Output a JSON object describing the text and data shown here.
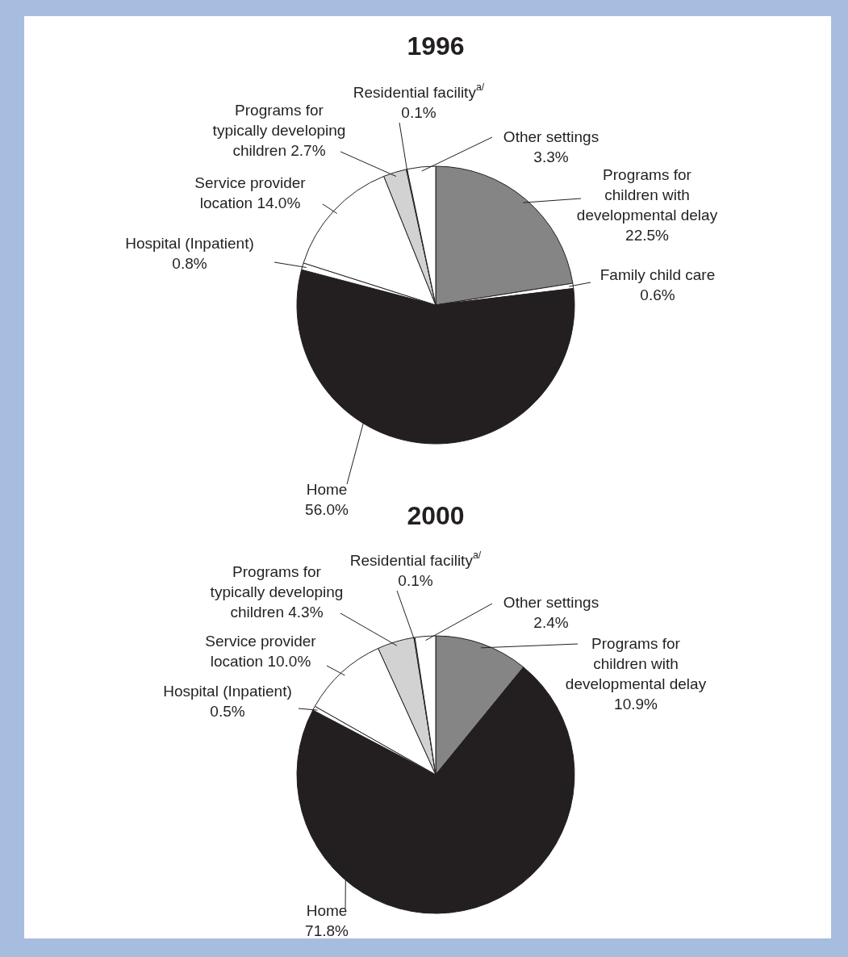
{
  "chart_data": [
    {
      "type": "pie",
      "title": "1996",
      "categories": [
        "Programs for children with developmental delay",
        "Family child care",
        "Home",
        "Hospital (Inpatient)",
        "Service provider location",
        "Programs for typically developing children",
        "Residential facility$^{a/}$",
        "Other settings"
      ],
      "values": [
        22.5,
        0.6,
        56.0,
        0.8,
        14.0,
        2.7,
        0.1,
        3.3
      ],
      "value_labels": [
        "22.5%",
        "0.6%",
        "56.0%",
        "0.8%",
        "14.0%",
        "2.7%",
        "0.1%",
        "3.3%"
      ],
      "colors": [
        "#858585",
        "#ffffff",
        "#231f20",
        "#ffffff",
        "#ffffff",
        "#d2d2d2",
        "#ffffff",
        "#ffffff"
      ]
    },
    {
      "type": "pie",
      "title": "2000",
      "categories": [
        "Programs for children with developmental delay",
        "Home",
        "Hospital (Inpatient)",
        "Service provider location",
        "Programs for typically developing children",
        "Residential facility$^{a/}$",
        "Other settings"
      ],
      "values": [
        10.9,
        71.8,
        0.5,
        10.0,
        4.3,
        0.1,
        2.4
      ],
      "value_labels": [
        "10.9%",
        "71.8%",
        "0.5%",
        "10.0%",
        "4.3%",
        "0.1%",
        "2.4%"
      ],
      "colors": [
        "#858585",
        "#231f20",
        "#ffffff",
        "#ffffff",
        "#d2d2d2",
        "#ffffff",
        "#ffffff"
      ]
    }
  ]
}
